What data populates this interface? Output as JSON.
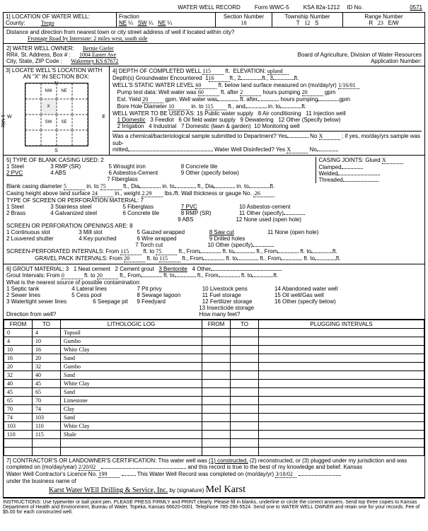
{
  "header": {
    "title": "WATER WELL RECORD",
    "form": "Form WWC-5",
    "ksa": "KSA 82a-1212",
    "id_label": "ID No.",
    "id": "0571"
  },
  "section1": {
    "label": "1] LOCATION OF WATER WELL:",
    "county_label": "County:",
    "county": "Trego",
    "fraction_label": "Fraction",
    "fne": "NE",
    "f14a": "¼",
    "fsw": "SW",
    "f14b": "¼",
    "fne2": "NE",
    "f14c": "¼",
    "section_label": "Section Number",
    "section": "18",
    "township_label": "Township Number",
    "township_t": "T",
    "township": "12",
    "township_s": "S",
    "range_label": "Range Number",
    "range_r": "R",
    "range": "23",
    "range_ew": "E/W",
    "distance_label": "Distance and direction from nearest town or city street address of well if located within city?",
    "distance": "Frontage Road by Interstate: 2 miles west, south side"
  },
  "section2": {
    "label": "2] WATER WELL OWNER:",
    "owner": "Bernie Giefer",
    "addr_label": "RR#, St. Address, Box #    :",
    "addr": "1004 Easter Ave",
    "city_label": "City, State, ZIP Code      :",
    "city": "Wakeeney KS 67672",
    "board": "Board of Agriculture, Division of Water Resources",
    "app_label": "Application Number:"
  },
  "section3": {
    "label": "3] LOCATE WELL'S LOCATION WITH",
    "sub": "AN \"X\" IN SECTION BOX:",
    "n": "N",
    "s": "S",
    "e": "E",
    "w": "W",
    "nw": "NW",
    "ne": "NE",
    "sw": "SW",
    "se": "SE",
    "mile": "1 Mile"
  },
  "section4": {
    "label": "4] DEPTH OF COMPLETED WELL",
    "depth": "115",
    "ft": "ft.",
    "elev_label": "ELEVATION:",
    "elev": "upland",
    "gw_label": "Depth(s) Groundwater Encountered",
    "gw1": "1",
    "gw1d": "16",
    "gw2": "2",
    "gw3": "3",
    "static_label": "WELL'S STATIC WATER LEVEL",
    "static": "60",
    "static_text": "ft. below land surface measured on (mo/day/yr)",
    "static_date": "1/16/01",
    "pump_label": "Pump test data:  Well water was",
    "pump_ft": "60",
    "pump_after": "ft. after",
    "pump_hrs": "2",
    "pump_hp": "hours pumping",
    "pump_gpm": "20",
    "gpm": "gpm",
    "est_label": "Est. Yield",
    "est": "20",
    "est_gpm": "gpm.  Well water was",
    "est_after": "ft. after",
    "est_hp": "hours pumping",
    "bore_label": "Bore Hole Diameter",
    "bore": "10",
    "bore_to": "in. to",
    "bore_d": "115",
    "bore_and": "ft., and",
    "bore_to2": "in. to",
    "use_label": "WELL WATER TO BE USED AS:",
    "u1": "1§ Public water supply",
    "u8": "8 Air conditioning",
    "u11": "11 Injection well",
    "u1d": "1 Domestic",
    "u3f": "3 Feedlot",
    "u6": "6 Oil field water supply",
    "u9": "9 Dewatering",
    "u12": "12 Other (Specify below)",
    "u2": "2 Irrigation",
    "u4": "4 Industrial",
    "u7": "7 Domestic (lawn & garden)",
    "u10": "10 Monitoring well",
    "chem_label": "Was a chemical/bacteriological sample submitted to Department? Yes",
    "chem_no": "No",
    "chem_x": "X",
    "chem_if": "; if yes, mo/day/yrs sample was sub-",
    "mitted": "mitted",
    "disinfect": "Water Well Disinfected?   Yes",
    "dis_x": "X",
    "dis_no": "No"
  },
  "section5": {
    "label": "5] TYPE OF BLANK CASING USED: 2",
    "c1": "1 Steel",
    "c3": "3 RMP (SR)",
    "c5": "5 Wrought iron",
    "c8": "8 Concrete tile",
    "c2": "2 PVC",
    "c4": "4 ABS",
    "c6": "6 Asbestos-Cement",
    "c9": "9 Other (specify below)",
    "c7": "7 Fiberglass",
    "cj_label": "CASING JOINTS:",
    "cj_glued": "Glued",
    "cj_x": "X",
    "cj_clamped": "Clamped",
    "cj_welded": "Welded",
    "cj_threaded": "Threaded",
    "bc_label": "Blank casing diameter",
    "bc_d": "5",
    "bc_to": "in. to",
    "bc_ft": "75",
    "bc_dia": "ft., Dia",
    "bc_into": "in. to",
    "bc_ftdia": "ft., Dia",
    "bc_into2": "in. to",
    "ch_label": "Casing height above land surface",
    "ch": "24",
    "ch_in": "in., weight",
    "ch_w": "2.29",
    "ch_lbs": "lbs./ft. Wall thickness or gauge No.",
    "ch_g": ".26",
    "perf_label": "TYPE OF SCREEN OR PERFORATION MATERIAL:  7",
    "p1": "1 Steel",
    "p3": "3 Stainless steel",
    "p5": "5 Fiberglass",
    "p7": "7 PVC",
    "p10": "10 Asbestos-cement",
    "p2": "2 Brass",
    "p4": "4 Galvanized steel",
    "p6": "6 Concrete tile",
    "p8": "8 RMP (SR)",
    "p11": "11 Other (specify)",
    "p9": "9 ABS",
    "p12": "12 None used (open hole)",
    "open_label": "SCREEN OR PERFORATION OPENINGS ARE: 8",
    "o1": "1 Continuous slot",
    "o3": "3 Mill slot",
    "o5": "5 Gauzed wrapped",
    "o8": "8 Saw cut",
    "o11": "11 None (open hole)",
    "o2": "2 Louvered shutter",
    "o4": "4 Key punched",
    "o6": "6 Wire wrapped",
    "o9": "9 Drilled holes",
    "o7": "7 Torch cut",
    "o10": "10 Other (specify)",
    "si_label": "SCREEN-PERFORATED INTERVALS:  From",
    "si_f1": "115",
    "si_t1": "75",
    "si_from": "ft., From",
    "si_to": "ft. to",
    "gp_label": "GRAVEL PACK INTERVALS:  From",
    "gp_f1": "20",
    "gp_t1": "115"
  },
  "section6": {
    "label": "6] GROUT MATERIAL:  3",
    "g1": "1 Neat cement",
    "g2": "2 Cement grout",
    "g3": "3 Bentonite",
    "g4": "4 Other",
    "gi_label": "Grout Intervals:  From",
    "gi_f": "0",
    "gi_to": "ft. to",
    "gi_t": "20",
    "gi_from": "ft., From",
    "near_label": "What is the nearest source of possible contamination:",
    "n1": "1 Septic tank",
    "n4": "4 Lateral lines",
    "n7": "7 Pit privy",
    "n10": "10 Livestock pens",
    "n14": "14 Abandoned water well",
    "n2": "2 Sewer lines",
    "n5": "5 Cess pool",
    "n8": "8 Sewage lagoon",
    "n11": "11 Fuel storage",
    "n15": "15 Oil well/Gas well",
    "n3": "3 Watertight sewer lines",
    "n6": "6 Seepage pit",
    "n9": "9 Feedyard",
    "n12": "12 Fertilizer storage",
    "n16": "16 Other (specify below)",
    "n13": "13 Insecticide storage",
    "dir_label": "Direction from well?",
    "how_label": "How many feet?"
  },
  "log": {
    "h_from": "FROM",
    "h_to": "TO",
    "h_lith": "LITHOLOGIC LOG",
    "h_plug": "PLUGGING INTERVALS",
    "rows": [
      {
        "from": "0",
        "to": "4",
        "lith": "Topsoil"
      },
      {
        "from": "4",
        "to": "10",
        "lith": "Gumbo"
      },
      {
        "from": "10",
        "to": "16",
        "lith": "White Clay"
      },
      {
        "from": "16",
        "to": "20",
        "lith": "Sand"
      },
      {
        "from": "20",
        "to": "32",
        "lith": "Gumbo"
      },
      {
        "from": "32",
        "to": "40",
        "lith": "Sand"
      },
      {
        "from": "40",
        "to": "45",
        "lith": "White Clay"
      },
      {
        "from": "45",
        "to": "65",
        "lith": "Sand"
      },
      {
        "from": "65",
        "to": "70",
        "lith": "Limestone"
      },
      {
        "from": "70",
        "to": "74",
        "lith": "Clay"
      },
      {
        "from": "74",
        "to": "103",
        "lith": "Sand"
      },
      {
        "from": "103",
        "to": "110",
        "lith": "White Clay"
      },
      {
        "from": "110",
        "to": "115",
        "lith": "Shale"
      }
    ],
    "blank_rows": 2
  },
  "section7": {
    "label": "7] CONTRACTOR'S OR LANDOWNER'S CERTIFICATION: This water well was",
    "c1": "(1) constructed,",
    "c2": "(2) reconstructed, or (3) plugged under my jurisdiction and was",
    "comp_label": "completed on (mo/day/year)",
    "comp": "2/20/02",
    "true_text": "and this record is true to the best of my knowledge and belief. Kansas",
    "lic_label": "Water Well Contractor's Licence No.",
    "lic": "199",
    "rec_label": "This Water Well Record was completed on (mo/day/yr)",
    "rec": "3/18/02",
    "under_label": "under the business name of",
    "biz": "Karst Water WEll Drilling & Service, Inc.",
    "by": "by (signature)",
    "sig": "Mel Karst"
  },
  "footer": "INSTRUCTIONS: Use typewriter or ball point pen. PLEASE PRESS FIRMLY and PRINT clearly. Please fill in blanks, underline or circle the correct answers. Send top three copies to Kansas Department of Health and Environment, Bureau of Water, Topeka, Kansas 66620-0001. Telephone 785-296-5524. Send one to WATER WELL OWNER and retain one for your records. Fee of $5.00 for each constructed well."
}
